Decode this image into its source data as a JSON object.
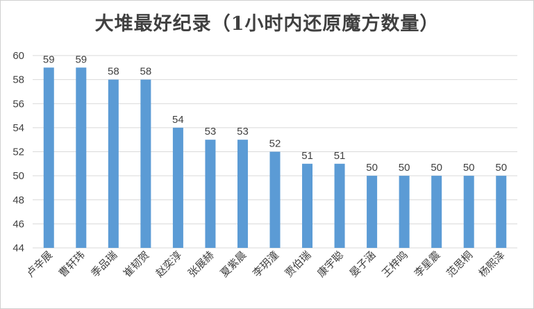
{
  "chart_data": {
    "type": "bar",
    "title": "大堆最好纪录（1小时内还原魔方数量）",
    "categories": [
      "卢辛展",
      "曹轩玮",
      "季品瑞",
      "崔韧贺",
      "赵奕淳",
      "张展赫",
      "夏紫晨",
      "李玥潼",
      "贾伯瑞",
      "康宇聪",
      "晏子涵",
      "王梓鸣",
      "李星震",
      "范思桐",
      "杨熙泽"
    ],
    "values": [
      59,
      59,
      58,
      58,
      54,
      53,
      53,
      52,
      51,
      51,
      50,
      50,
      50,
      50,
      50
    ],
    "ylim": [
      44,
      60
    ],
    "yticks": [
      44,
      46,
      48,
      50,
      52,
      54,
      56,
      58,
      60
    ],
    "xlabel": "",
    "ylabel": "",
    "grid": true,
    "legend": "none",
    "bar_color": "#5b9bd5",
    "grid_color": "#d9d9d9"
  }
}
